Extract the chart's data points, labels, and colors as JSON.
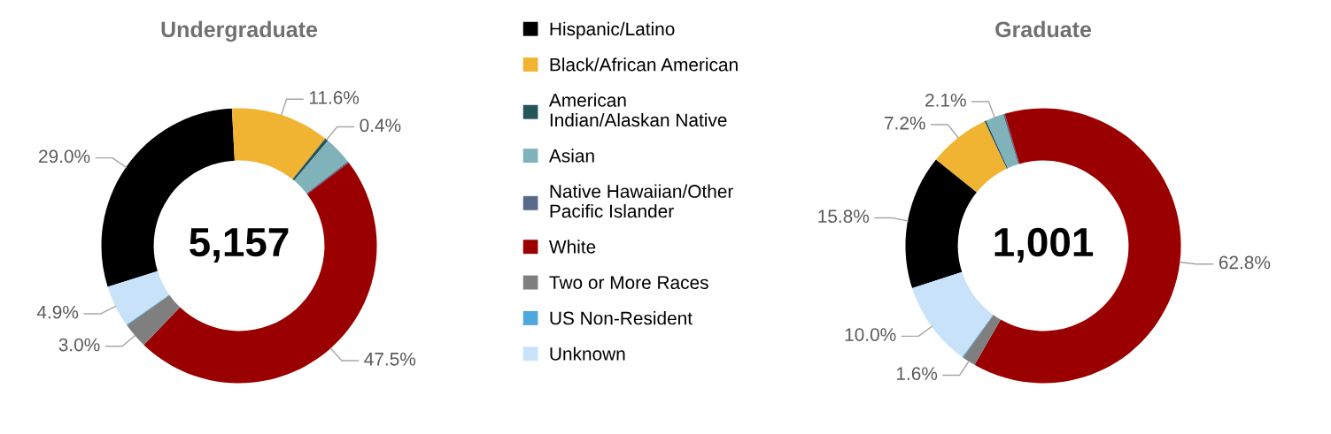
{
  "chart_data": [
    {
      "type": "donut",
      "title": "Undergraduate",
      "legend": "right",
      "categories": [
        "Hispanic/Latino",
        "Black/African American",
        "American Indian/Alaskan Native",
        "Asian",
        "Native Hawaiian/Other Pacific Islander",
        "White",
        "Two or More Races",
        "US Non-Resident",
        "Unknown"
      ],
      "values": [
        29.0,
        11.6,
        0.4,
        3.3,
        0.2,
        47.5,
        3.0,
        0.1,
        4.9
      ],
      "value_labels": [
        "29.0%",
        "11.6%",
        "0.4%",
        null,
        null,
        "47.5%",
        "3.0%",
        null,
        "4.9%"
      ],
      "colors": [
        "#000000",
        "#f0b432",
        "#255459",
        "#7fb3b9",
        "#576a8a",
        "#9b0000",
        "#7f7f7f",
        "#4ea8de",
        "#c8e2fa"
      ],
      "annotations": [
        "5,157"
      ]
    },
    {
      "type": "donut",
      "title": "Graduate",
      "categories": [
        null,
        null,
        null,
        null,
        null,
        null,
        null,
        null,
        null
      ],
      "values": [
        15.8,
        7.2,
        0.2,
        2.1,
        0.2,
        62.8,
        1.6,
        0.1,
        10.0
      ],
      "value_labels": [
        "15.8%",
        "7.2%",
        null,
        "2.1%",
        null,
        "62.8%",
        "1.6%",
        null,
        "10.0%"
      ],
      "colors": [
        "#000000",
        "#f0b432",
        "#255459",
        "#7fb3b9",
        "#576a8a",
        "#9b0000",
        "#7f7f7f",
        "#4ea8de",
        "#c8e2fa"
      ],
      "annotations": [
        "1,001"
      ]
    }
  ]
}
